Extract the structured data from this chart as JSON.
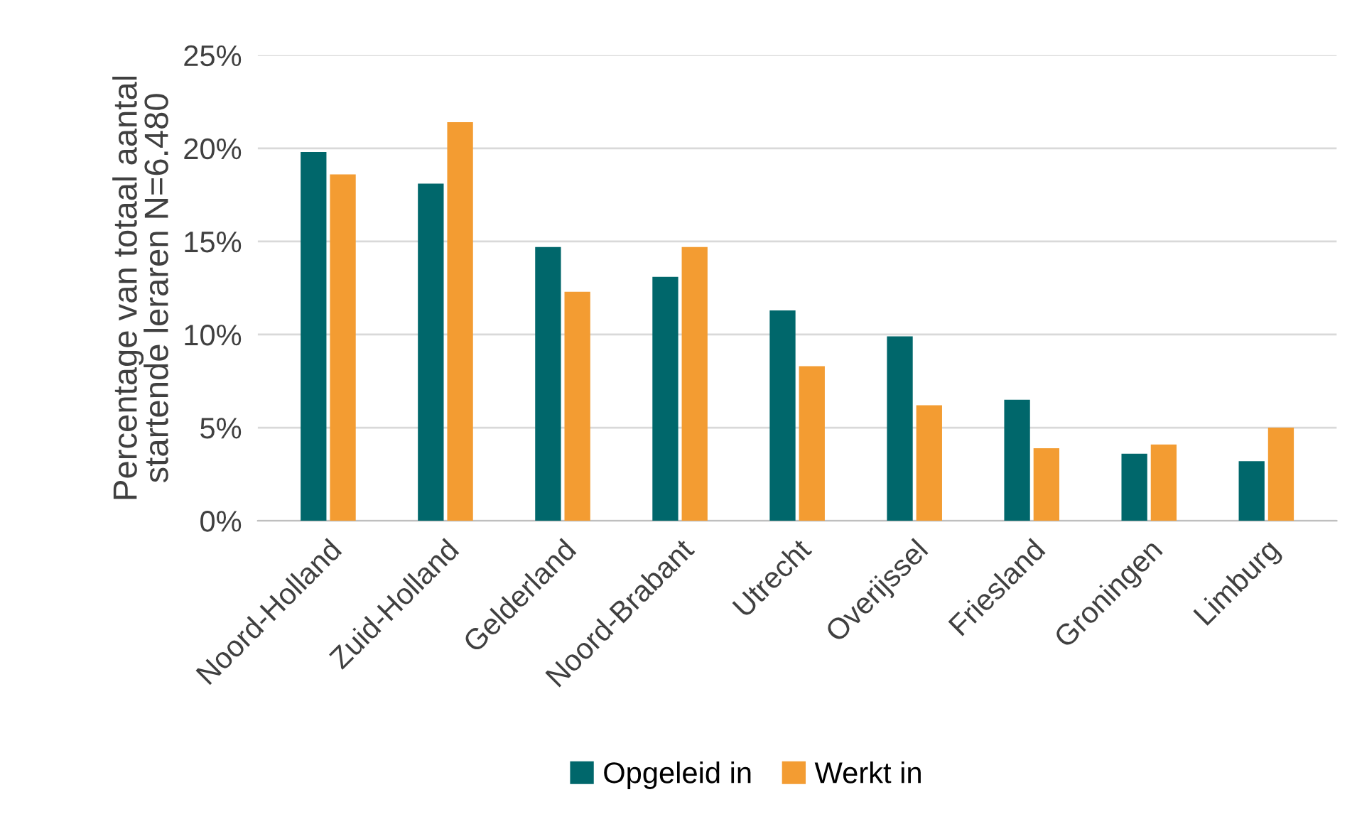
{
  "chart_data": {
    "type": "bar",
    "ylabel": "Percentage van totaal aantal\nstartende leraren N=6.480",
    "categories": [
      "Noord-Holland",
      "Zuid-Holland",
      "Gelderland",
      "Noord-Brabant",
      "Utrecht",
      "Overijssel",
      "Friesland",
      "Groningen",
      "Limburg"
    ],
    "series": [
      {
        "name": "Opgeleid in",
        "color": "#00676b",
        "values": [
          19.8,
          18.1,
          14.7,
          13.1,
          11.3,
          9.9,
          6.5,
          3.6,
          3.2
        ]
      },
      {
        "name": "Werkt in",
        "color": "#f39c32",
        "values": [
          18.6,
          21.4,
          12.3,
          14.7,
          8.3,
          6.2,
          3.9,
          4.1,
          5.0
        ]
      }
    ],
    "ylim": [
      0,
      25
    ],
    "yticks": [
      {
        "value": 0,
        "label": "0%"
      },
      {
        "value": 5,
        "label": "5%"
      },
      {
        "value": 10,
        "label": "10%"
      },
      {
        "value": 15,
        "label": "15%"
      },
      {
        "value": 20,
        "label": "20%"
      },
      {
        "value": 25,
        "label": "25%"
      }
    ],
    "grid": "y",
    "legend": "bottom"
  }
}
